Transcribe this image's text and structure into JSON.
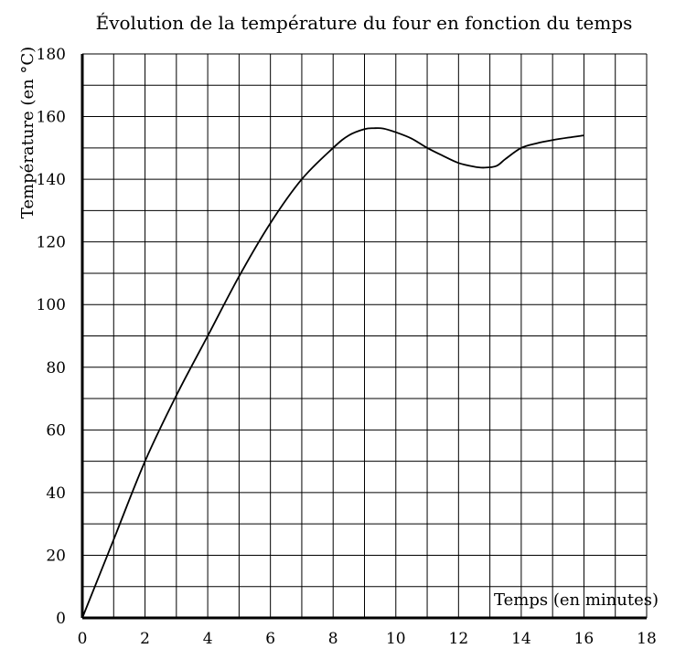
{
  "chart_data": {
    "type": "line",
    "title": "Évolution de la température du four en fonction du temps",
    "xlabel": "Temps (en minutes)",
    "ylabel": "Température (en °C)",
    "xlim": [
      0,
      18
    ],
    "ylim": [
      0,
      180
    ],
    "x_ticks": [
      0,
      2,
      4,
      6,
      8,
      10,
      12,
      14,
      16,
      18
    ],
    "y_ticks": [
      0,
      20,
      40,
      60,
      80,
      100,
      120,
      140,
      160,
      180
    ],
    "grid": true,
    "x_grid_step": 1,
    "y_grid_step": 10,
    "series": [
      {
        "x": [
          0,
          1,
          2,
          3,
          4,
          5,
          6,
          7,
          8,
          8.5,
          9,
          9.3,
          9.6,
          10,
          10.5,
          11,
          11.5,
          12,
          12.5,
          12.8,
          13.2,
          13.5,
          14,
          14.5,
          15,
          15.5,
          16
        ],
        "y": [
          0,
          25,
          50,
          71,
          90,
          109,
          126,
          140,
          150,
          154,
          156,
          156.3,
          156.2,
          155,
          153,
          150,
          147.5,
          145.2,
          144,
          143.7,
          144.2,
          146.5,
          150,
          151.5,
          152.5,
          153.3,
          154
        ]
      }
    ],
    "colors": {
      "line": "#000000",
      "grid": "#000000",
      "background": "#ffffff"
    }
  }
}
